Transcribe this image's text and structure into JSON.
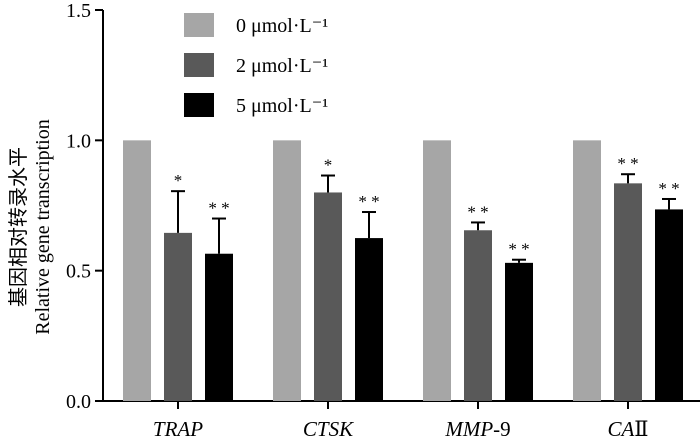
{
  "chart_data": {
    "type": "bar",
    "title": "",
    "xlabel": "",
    "ylabel_cn": "基因相对转录水平",
    "ylabel": "Relative gene transcription",
    "ylim": [
      0,
      1.5
    ],
    "yticks": [
      "0.0",
      "0.5",
      "1.0",
      "1.5"
    ],
    "categories": [
      {
        "name": "TRAP",
        "suffix": ""
      },
      {
        "name": "CTSK",
        "suffix": ""
      },
      {
        "name": "MMP",
        "suffix": "-9"
      },
      {
        "name": "CA",
        "suffix": "Ⅱ"
      }
    ],
    "series": [
      {
        "name": "0 μmol·L⁻¹",
        "color": "#a6a6a6",
        "values": [
          1.0,
          1.0,
          1.0,
          1.0
        ],
        "errors": [
          0,
          0,
          0,
          0
        ],
        "sig": [
          "",
          "",
          "",
          ""
        ]
      },
      {
        "name": "2 μmol·L⁻¹",
        "color": "#595959",
        "values": [
          0.645,
          0.8,
          0.655,
          0.835
        ],
        "errors": [
          0.16,
          0.065,
          0.03,
          0.035
        ],
        "sig": [
          "*",
          "*",
          "**",
          "**"
        ]
      },
      {
        "name": "5 μmol·L⁻¹",
        "color": "#000000",
        "values": [
          0.565,
          0.625,
          0.53,
          0.735
        ],
        "errors": [
          0.135,
          0.1,
          0.012,
          0.04
        ],
        "sig": [
          "**",
          "**",
          "**",
          "**"
        ]
      }
    ],
    "legend_position": "top-left"
  }
}
